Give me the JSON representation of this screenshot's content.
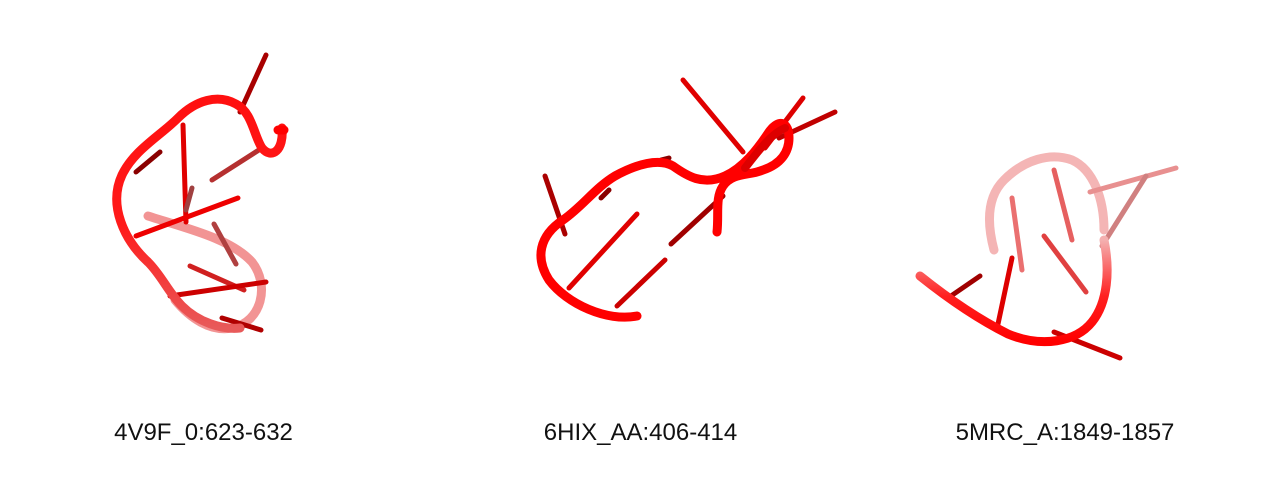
{
  "colors": {
    "backbone": "#ff0000",
    "backbone_dark": "#c00000",
    "base": "#e00000",
    "base_dark": "#8a0000",
    "caption": "#111111"
  },
  "structures": [
    {
      "label": "4V9F_0:623-632",
      "icon": "rna-backbone-cartoon"
    },
    {
      "label": "6HIX_AA:406-414",
      "icon": "rna-backbone-cartoon"
    },
    {
      "label": "5MRC_A:1849-1857",
      "icon": "rna-backbone-cartoon"
    }
  ]
}
